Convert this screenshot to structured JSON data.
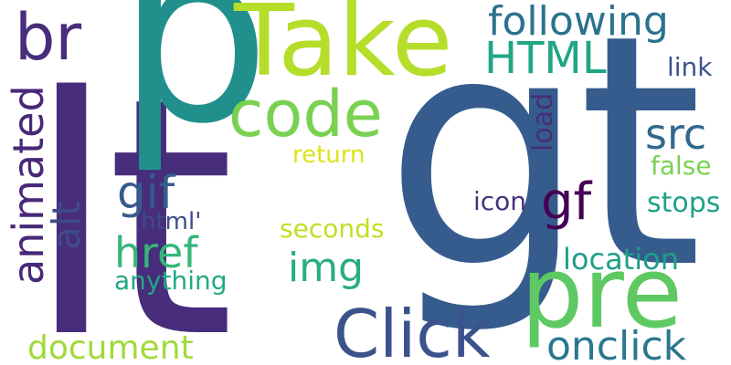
{
  "words": {
    "lt": {
      "text": "lt",
      "color": "#472D7B"
    },
    "gt": {
      "text": "gt",
      "color": "#365C8D"
    },
    "p": {
      "text": "p",
      "color": "#21908C"
    },
    "take": {
      "text": "Take",
      "color": "#B5DE2B"
    },
    "br": {
      "text": "br",
      "color": "#472D7B"
    },
    "following": {
      "text": "following",
      "color": "#2C728E"
    },
    "html": {
      "text": "HTML",
      "color": "#21A685"
    },
    "link": {
      "text": "link",
      "color": "#3B528B"
    },
    "code": {
      "text": "code",
      "color": "#7AD151"
    },
    "animated": {
      "text": "animated",
      "color": "#482878"
    },
    "alt": {
      "text": "alt",
      "color": "#3E4A89"
    },
    "load": {
      "text": "load",
      "color": "#472D7B"
    },
    "src": {
      "text": "src",
      "color": "#31688E"
    },
    "return": {
      "text": "return",
      "color": "#DDE318"
    },
    "false": {
      "text": "false",
      "color": "#7AD151"
    },
    "gif": {
      "text": "gif",
      "color": "#365C8D"
    },
    "gf": {
      "text": "gf",
      "color": "#440154"
    },
    "icon": {
      "text": "icon",
      "color": "#46337E"
    },
    "stops": {
      "text": "stops",
      "color": "#1FA187"
    },
    "html2": {
      "text": "html'",
      "color": "#3E4A89"
    },
    "seconds": {
      "text": "seconds",
      "color": "#C2DF23"
    },
    "href": {
      "text": "href",
      "color": "#35B779"
    },
    "img": {
      "text": "img",
      "color": "#28AE80"
    },
    "location": {
      "text": "location",
      "color": "#1F9E89"
    },
    "anything": {
      "text": "anything",
      "color": "#22A884"
    },
    "pre": {
      "text": "pre",
      "color": "#5EC962"
    },
    "click": {
      "text": "Click",
      "color": "#3B528B"
    },
    "document": {
      "text": "document",
      "color": "#A0DA39"
    },
    "onclick": {
      "text": "onclick",
      "color": "#2A788E"
    }
  }
}
